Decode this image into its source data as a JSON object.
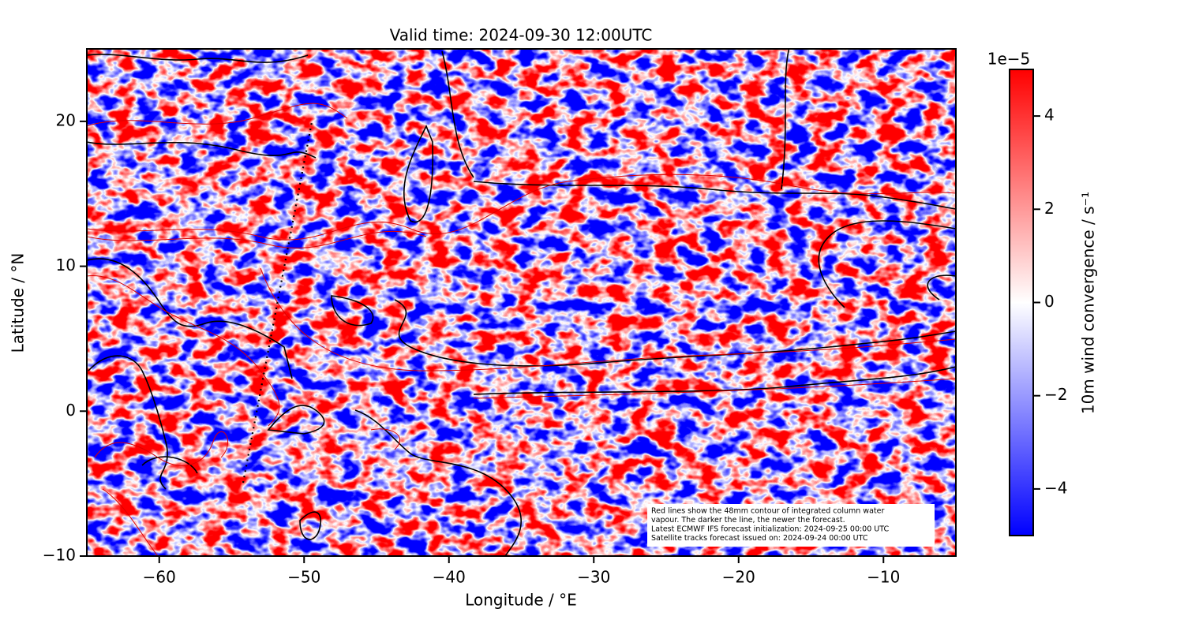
{
  "chart_data": {
    "type": "heatmap",
    "title": "Valid time: 2024-09-30 12:00UTC",
    "x_label": "Longitude / °E",
    "y_label": "Latitude / °N",
    "xlim": [
      -65,
      -5
    ],
    "ylim": [
      -10,
      25
    ],
    "xticks": [
      {
        "value": -60,
        "label": "−60"
      },
      {
        "value": -50,
        "label": "−50"
      },
      {
        "value": -40,
        "label": "−40"
      },
      {
        "value": -30,
        "label": "−30"
      },
      {
        "value": -20,
        "label": "−20"
      },
      {
        "value": -10,
        "label": "−10"
      }
    ],
    "yticks": [
      {
        "value": -10,
        "label": "−10"
      },
      0,
      10,
      20
    ],
    "colorbar": {
      "label": "10m wind convergence / s⁻¹",
      "exponent_label": "1e−5",
      "lim": [
        -5,
        5
      ],
      "ticks": [
        {
          "value": -4,
          "label": "−4"
        },
        {
          "value": -2,
          "label": "−2"
        },
        0,
        2,
        4
      ],
      "colors": [
        "#0000ff",
        "#ffffff",
        "#ff0000"
      ]
    },
    "annotation": [
      "Red lines show the 48mm contour of integrated column water",
      "vapour. The darker the line, the newer the forecast.",
      "Latest ECMWF IFS forecast initialization: 2024-09-25 00:00 UTC",
      "Satellite tracks forecast issued on: 2024-09-24 00:00 UTC"
    ]
  }
}
